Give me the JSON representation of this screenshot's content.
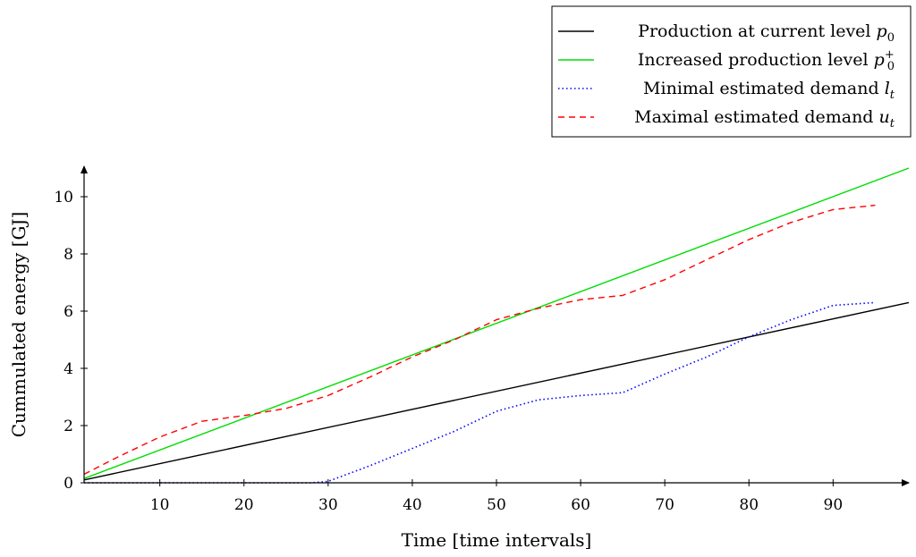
{
  "chart_data": {
    "type": "line",
    "title": "",
    "xlabel": "Time [time intervals]",
    "ylabel": "Cummulated energy [GJ]",
    "xlim": [
      1,
      99
    ],
    "ylim": [
      0,
      11
    ],
    "xticks": [
      10,
      20,
      30,
      40,
      50,
      60,
      70,
      80,
      90
    ],
    "yticks": [
      0,
      2,
      4,
      6,
      8,
      10
    ],
    "grid": false,
    "legend_position": "top-right",
    "series": [
      {
        "name": "Production at current level",
        "math_symbol": "p",
        "math_sub": "0",
        "math_sup": "",
        "color": "#000000",
        "dash": "solid",
        "x": [
          1,
          99
        ],
        "y": [
          0.1,
          6.3
        ]
      },
      {
        "name": "Increased production level",
        "math_symbol": "p",
        "math_sub": "0",
        "math_sup": "+",
        "color": "#00dd00",
        "dash": "solid",
        "x": [
          1,
          99
        ],
        "y": [
          0.15,
          11.0
        ]
      },
      {
        "name": "Minimal estimated demand",
        "math_symbol": "l",
        "math_sub": "t",
        "math_sup": "",
        "color": "#0000ff",
        "dash": "dotted",
        "x": [
          1,
          10,
          20,
          28,
          30,
          35,
          40,
          45,
          50,
          55,
          60,
          65,
          70,
          75,
          80,
          85,
          90,
          95
        ],
        "y": [
          0,
          0,
          0,
          0,
          0.05,
          0.6,
          1.2,
          1.8,
          2.5,
          2.9,
          3.05,
          3.15,
          3.8,
          4.4,
          5.1,
          5.7,
          6.2,
          6.3
        ]
      },
      {
        "name": "Maximal estimated demand",
        "math_symbol": "u",
        "math_sub": "t",
        "math_sup": "",
        "color": "#ff0000",
        "dash": "dashed",
        "x": [
          1,
          5,
          10,
          15,
          20,
          25,
          30,
          35,
          40,
          45,
          50,
          55,
          60,
          65,
          70,
          75,
          80,
          85,
          90,
          95
        ],
        "y": [
          0.3,
          0.9,
          1.6,
          2.15,
          2.35,
          2.6,
          3.05,
          3.7,
          4.4,
          5.0,
          5.7,
          6.1,
          6.4,
          6.55,
          7.1,
          7.8,
          8.5,
          9.1,
          9.55,
          9.7
        ]
      }
    ]
  }
}
